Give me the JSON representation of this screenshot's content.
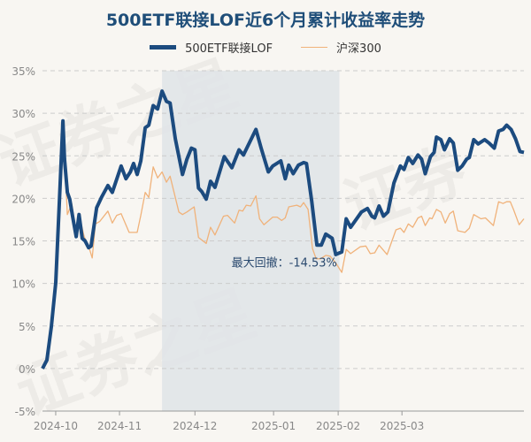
{
  "watermark": "证券之星",
  "chart_data": {
    "type": "line",
    "title": "500ETF联接LOF近6个月累计收益率走势",
    "xlabel": "",
    "ylabel": "",
    "ylim": [
      -5,
      35
    ],
    "yticks": [
      "35%",
      "30%",
      "25%",
      "20%",
      "15%",
      "10%",
      "5%",
      "0%",
      "-5%"
    ],
    "ytick_values": [
      35,
      30,
      25,
      20,
      15,
      10,
      5,
      0,
      -5
    ],
    "x_unit": "trading-day index",
    "xlim": [
      0,
      120
    ],
    "xticks": [
      {
        "label": "2024-10",
        "t": 3.3
      },
      {
        "label": "2024-11",
        "t": 19.2
      },
      {
        "label": "2024-12",
        "t": 38
      },
      {
        "label": "2025-01",
        "t": 57.6
      },
      {
        "label": "2025-02",
        "t": 73.7
      },
      {
        "label": "2025-03",
        "t": 89.6
      }
    ],
    "grid": true,
    "legend_position": "top-center",
    "series": [
      {
        "name": "500ETF联接LOF",
        "color": "#1c4b7f",
        "points": [
          [
            0,
            0
          ],
          [
            1.1,
            1.0
          ],
          [
            2.2,
            4.9
          ],
          [
            3.3,
            10.1
          ],
          [
            4.2,
            19.4
          ],
          [
            5.1,
            29.1
          ],
          [
            5.5,
            24.6
          ],
          [
            6.2,
            20.7
          ],
          [
            6.8,
            19.9
          ],
          [
            7.5,
            17.9
          ],
          [
            8.4,
            15.5
          ],
          [
            9.1,
            18.1
          ],
          [
            9.9,
            15.3
          ],
          [
            10.6,
            15.0
          ],
          [
            11.5,
            14.2
          ],
          [
            12.1,
            14.4
          ],
          [
            13.5,
            18.9
          ],
          [
            14.8,
            20.2
          ],
          [
            16.3,
            21.5
          ],
          [
            17.4,
            20.7
          ],
          [
            19.6,
            23.8
          ],
          [
            20.8,
            22.3
          ],
          [
            21.9,
            23.1
          ],
          [
            22.7,
            24.1
          ],
          [
            23.6,
            22.8
          ],
          [
            24.5,
            24.4
          ],
          [
            25.6,
            28.3
          ],
          [
            26.5,
            28.6
          ],
          [
            27.6,
            30.9
          ],
          [
            28.7,
            30.5
          ],
          [
            29.8,
            32.6
          ],
          [
            30.9,
            31.4
          ],
          [
            31.8,
            31.2
          ],
          [
            33.1,
            27.0
          ],
          [
            34.9,
            22.8
          ],
          [
            36,
            24.6
          ],
          [
            37.1,
            25.9
          ],
          [
            38,
            25.7
          ],
          [
            38.9,
            21.2
          ],
          [
            39.7,
            20.8
          ],
          [
            40.8,
            19.9
          ],
          [
            41.9,
            22.0
          ],
          [
            43,
            21.3
          ],
          [
            45.3,
            24.9
          ],
          [
            47.2,
            23.6
          ],
          [
            49,
            25.7
          ],
          [
            50.1,
            25.1
          ],
          [
            53.2,
            28.1
          ],
          [
            54.5,
            25.9
          ],
          [
            56.3,
            23.1
          ],
          [
            57.4,
            23.8
          ],
          [
            59.4,
            24.4
          ],
          [
            60.5,
            22.3
          ],
          [
            61.4,
            23.9
          ],
          [
            62.5,
            22.9
          ],
          [
            63.8,
            23.9
          ],
          [
            65.1,
            24.2
          ],
          [
            65.8,
            24.1
          ],
          [
            67.1,
            19.7
          ],
          [
            68.4,
            14.5
          ],
          [
            69.5,
            14.5
          ],
          [
            70.6,
            15.8
          ],
          [
            72.2,
            15.3
          ],
          [
            73.1,
            13.4
          ],
          [
            74.6,
            13.7
          ],
          [
            75.7,
            17.6
          ],
          [
            76.8,
            16.6
          ],
          [
            79.5,
            18.4
          ],
          [
            81,
            18.8
          ],
          [
            82.1,
            17.9
          ],
          [
            82.8,
            17.7
          ],
          [
            83.9,
            19.1
          ],
          [
            85,
            17.9
          ],
          [
            86.1,
            18.4
          ],
          [
            87.6,
            21.8
          ],
          [
            89.2,
            23.8
          ],
          [
            90.1,
            23.4
          ],
          [
            91.2,
            24.8
          ],
          [
            92.3,
            24.1
          ],
          [
            93.6,
            25.1
          ],
          [
            94.5,
            24.6
          ],
          [
            95.4,
            22.9
          ],
          [
            96.7,
            24.9
          ],
          [
            97.6,
            25.4
          ],
          [
            98.2,
            27.2
          ],
          [
            99.3,
            26.9
          ],
          [
            100.2,
            25.7
          ],
          [
            101.5,
            27.0
          ],
          [
            102.4,
            26.5
          ],
          [
            103.5,
            23.3
          ],
          [
            104.6,
            23.8
          ],
          [
            105.7,
            24.6
          ],
          [
            106.4,
            24.8
          ],
          [
            107.5,
            26.9
          ],
          [
            108.6,
            26.4
          ],
          [
            110.2,
            26.9
          ],
          [
            111.3,
            26.5
          ],
          [
            112.6,
            25.9
          ],
          [
            113.7,
            27.9
          ],
          [
            114.8,
            28.1
          ],
          [
            115.7,
            28.6
          ],
          [
            116.8,
            28.1
          ],
          [
            117.9,
            27.0
          ],
          [
            119,
            25.5
          ],
          [
            120,
            25.4
          ]
        ]
      },
      {
        "name": "沪深300",
        "color": "#f0b27a",
        "points": [
          [
            0,
            0
          ],
          [
            1.1,
            1.0
          ],
          [
            2.2,
            4.9
          ],
          [
            3.3,
            10.1
          ],
          [
            4.2,
            19.4
          ],
          [
            5.3,
            27.2
          ],
          [
            6.2,
            18.1
          ],
          [
            7.3,
            19.4
          ],
          [
            8.2,
            16.3
          ],
          [
            9.1,
            18.1
          ],
          [
            10.4,
            15.5
          ],
          [
            11.5,
            14.4
          ],
          [
            12.4,
            13.0
          ],
          [
            13.2,
            17.0
          ],
          [
            14.3,
            17.3
          ],
          [
            16.3,
            18.5
          ],
          [
            17.4,
            17.1
          ],
          [
            18.5,
            18.0
          ],
          [
            19.6,
            18.2
          ],
          [
            21.6,
            16.0
          ],
          [
            23.6,
            16.0
          ],
          [
            24.5,
            18.0
          ],
          [
            25.6,
            20.7
          ],
          [
            26.5,
            20.1
          ],
          [
            27.6,
            23.7
          ],
          [
            28.7,
            22.4
          ],
          [
            29.8,
            23.1
          ],
          [
            30.9,
            21.9
          ],
          [
            31.8,
            22.6
          ],
          [
            34,
            18.4
          ],
          [
            34.9,
            18.1
          ],
          [
            36,
            18.4
          ],
          [
            37.8,
            19.0
          ],
          [
            38.9,
            15.4
          ],
          [
            40,
            15.0
          ],
          [
            40.8,
            14.7
          ],
          [
            41.9,
            16.6
          ],
          [
            43,
            15.7
          ],
          [
            45.1,
            17.9
          ],
          [
            46.1,
            18.0
          ],
          [
            47.9,
            17.1
          ],
          [
            49,
            18.6
          ],
          [
            49.9,
            18.5
          ],
          [
            50.8,
            19.2
          ],
          [
            51.9,
            19.1
          ],
          [
            53.2,
            20.3
          ],
          [
            54.1,
            17.6
          ],
          [
            55.2,
            16.9
          ],
          [
            57.4,
            17.8
          ],
          [
            58.5,
            17.8
          ],
          [
            59.6,
            17.4
          ],
          [
            60.5,
            17.7
          ],
          [
            61.4,
            19.0
          ],
          [
            63.4,
            19.2
          ],
          [
            64.3,
            19.0
          ],
          [
            65.1,
            19.5
          ],
          [
            66.2,
            18.7
          ],
          [
            67.3,
            14.1
          ],
          [
            68.2,
            12.9
          ],
          [
            69.3,
            12.9
          ],
          [
            70.6,
            13.3
          ],
          [
            71.7,
            13.2
          ],
          [
            73.1,
            12.4
          ],
          [
            74.6,
            11.3
          ],
          [
            75.7,
            14.0
          ],
          [
            76.8,
            13.5
          ],
          [
            79.2,
            14.3
          ],
          [
            80.6,
            14.4
          ],
          [
            81.7,
            13.5
          ],
          [
            82.8,
            13.6
          ],
          [
            83.9,
            14.5
          ],
          [
            85.9,
            13.4
          ],
          [
            88.1,
            16.3
          ],
          [
            89.2,
            16.5
          ],
          [
            90.1,
            16.0
          ],
          [
            91.2,
            17.0
          ],
          [
            92.3,
            16.6
          ],
          [
            93.6,
            17.7
          ],
          [
            94.5,
            17.9
          ],
          [
            95.4,
            16.8
          ],
          [
            96.5,
            17.7
          ],
          [
            97.1,
            17.6
          ],
          [
            98.2,
            18.7
          ],
          [
            99.3,
            18.4
          ],
          [
            100.4,
            17.1
          ],
          [
            101.5,
            18.2
          ],
          [
            102.4,
            18.5
          ],
          [
            103.5,
            16.2
          ],
          [
            105.3,
            16.0
          ],
          [
            106.4,
            16.5
          ],
          [
            107.5,
            18.1
          ],
          [
            109.3,
            17.6
          ],
          [
            110.4,
            17.7
          ],
          [
            112.4,
            16.8
          ],
          [
            113.7,
            19.6
          ],
          [
            114.8,
            19.4
          ],
          [
            115.7,
            19.6
          ],
          [
            116.6,
            19.6
          ],
          [
            117.4,
            18.7
          ],
          [
            118.8,
            16.9
          ],
          [
            120,
            17.6
          ]
        ]
      }
    ],
    "max_drawdown": {
      "label": "最大回撤：-14.53%",
      "value": -14.53,
      "start_t": 29.8,
      "end_t": 74.0,
      "shade_color": "#dfe4e8"
    }
  }
}
